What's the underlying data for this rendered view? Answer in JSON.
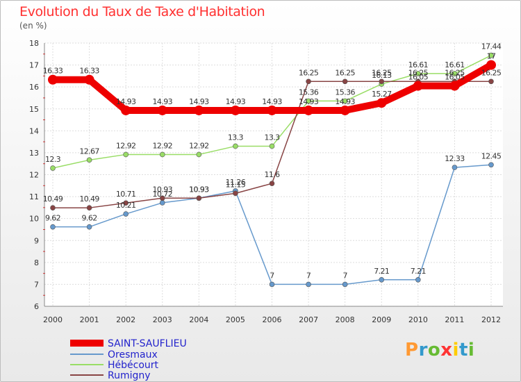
{
  "header": {
    "title": "Evolution du Taux de Taxe d'Habitation",
    "unit": "(en %)"
  },
  "logo": {
    "text": "Proxiti"
  },
  "chart_data": {
    "type": "line",
    "title": "Evolution du Taux de Taxe d'Habitation",
    "ylabel": "(en %)",
    "x": [
      "2000",
      "2001",
      "2002",
      "2003",
      "2004",
      "2005",
      "2006",
      "2007",
      "2008",
      "2009",
      "2010",
      "2011",
      "2012"
    ],
    "ylim": [
      6,
      18
    ],
    "yticks": [
      6,
      7,
      8,
      9,
      10,
      11,
      12,
      13,
      14,
      15,
      16,
      17,
      18
    ],
    "grid": true,
    "legend_position": "bottom-left",
    "series": [
      {
        "name": "SAINT-SAUFLIEU",
        "color": "#ee0000",
        "values": [
          16.33,
          16.33,
          14.93,
          14.93,
          14.93,
          14.93,
          14.93,
          14.93,
          14.93,
          15.27,
          16.05,
          16.05,
          17.0
        ],
        "labels": [
          "16.33",
          "16.33",
          "14.93",
          "14.93",
          "14.93",
          "14.93",
          "14.93",
          "14.93",
          "14.93",
          "15.27",
          "16.05",
          "16.05",
          "17"
        ]
      },
      {
        "name": "Oresmaux",
        "color": "#6699cc",
        "values": [
          9.62,
          9.62,
          10.21,
          10.72,
          10.93,
          11.26,
          7,
          7,
          7,
          7.21,
          7.21,
          12.33,
          12.45
        ],
        "labels": [
          "9.62",
          "9.62",
          "10.21",
          "10.72",
          "10.93",
          "11.26",
          "7",
          "7",
          "7",
          "7.21",
          "7.21",
          "12.33",
          "12.45"
        ]
      },
      {
        "name": "Hébécourt",
        "color": "#99dd66",
        "values": [
          12.3,
          12.67,
          12.92,
          12.92,
          12.92,
          13.3,
          13.3,
          15.36,
          15.36,
          16.13,
          16.61,
          16.61,
          17.44
        ],
        "labels": [
          "12.3",
          "12.67",
          "12.92",
          "12.92",
          "12.92",
          "13.3",
          "13.3",
          "15.36",
          "15.36",
          "16.13",
          "16.61",
          "16.61",
          "17.44"
        ]
      },
      {
        "name": "Rumigny",
        "color": "#884444",
        "values": [
          10.49,
          10.49,
          10.71,
          10.93,
          10.93,
          11.15,
          11.6,
          16.25,
          16.25,
          16.25,
          16.25,
          16.25,
          16.25
        ],
        "labels": [
          "10.49",
          "10.49",
          "10.71",
          "10.93",
          "10.93",
          "11.15",
          "11.6",
          "16.25",
          "16.25",
          "16.25",
          "16.25",
          "16.25",
          "16.25"
        ]
      }
    ]
  }
}
